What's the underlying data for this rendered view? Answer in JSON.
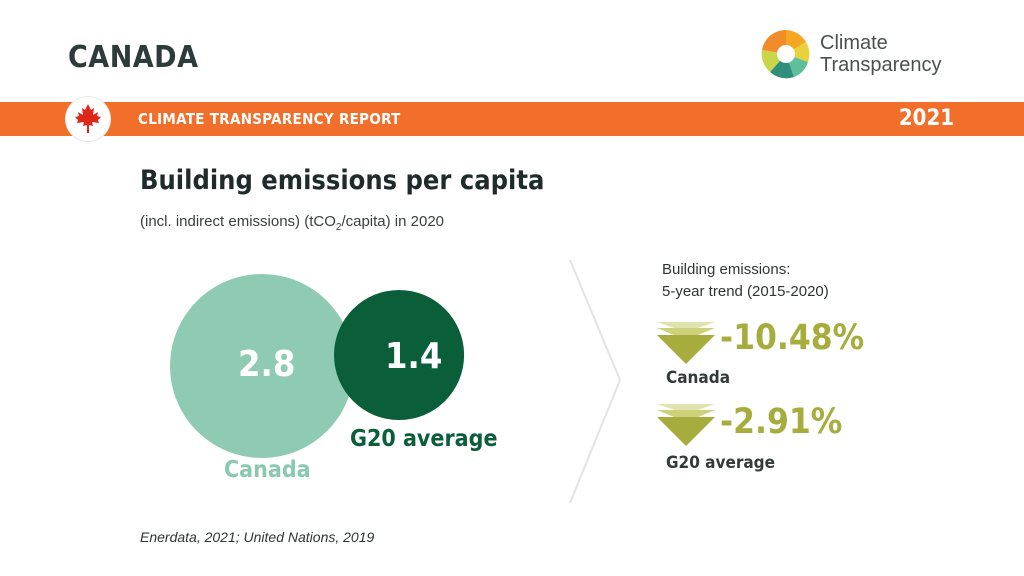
{
  "header": {
    "country": "CANADA",
    "logo_line1": "Climate",
    "logo_line2": "Transparency",
    "banner_title": "CLIMATE TRANSPARENCY REPORT",
    "year": "2021",
    "flag_icon": "maple-leaf-icon"
  },
  "colors": {
    "banner": "#f26f2b",
    "canada_bubble": "#8ecbb2",
    "g20_bubble": "#0b5e3a",
    "trend": "#a6ad3c"
  },
  "chart_data": {
    "type": "bubble",
    "title": "Building emissions per capita",
    "subtitle_prefix": "(incl. indirect emissions) (tCO",
    "subtitle_sub": "2",
    "subtitle_suffix": "/capita) in 2020",
    "series": [
      {
        "name": "Canada",
        "value": 2.8,
        "value_label": "2.8"
      },
      {
        "name": "G20 average",
        "value": 1.4,
        "value_label": "1.4"
      }
    ],
    "trend": {
      "heading_line1": "Building emissions:",
      "heading_line2": "5-year trend (2015-2020)",
      "items": [
        {
          "label": "Canada",
          "value": -10.48,
          "value_label": "-10.48%",
          "direction": "down"
        },
        {
          "label": "G20 average",
          "value": -2.91,
          "value_label": "-2.91%",
          "direction": "down"
        }
      ]
    },
    "source": "Enerdata, 2021; United Nations, 2019"
  }
}
